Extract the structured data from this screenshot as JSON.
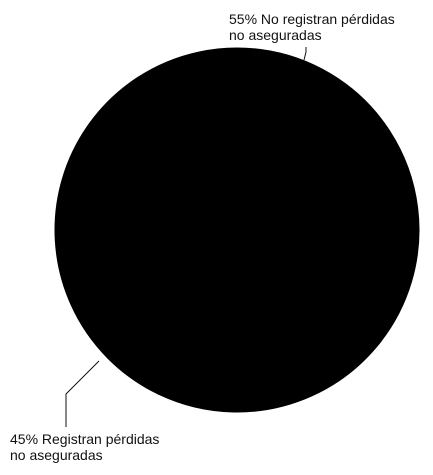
{
  "chart_data": {
    "type": "pie",
    "slices": [
      {
        "label_line1": "55% No registran pérdidas",
        "label_line2": "no aseguradas",
        "value": 55,
        "color": "#000000"
      },
      {
        "label_line1": "45% Registran pérdidas",
        "label_line2": "no aseguradas",
        "value": 45,
        "color": "#000000"
      }
    ],
    "legend": "none"
  }
}
